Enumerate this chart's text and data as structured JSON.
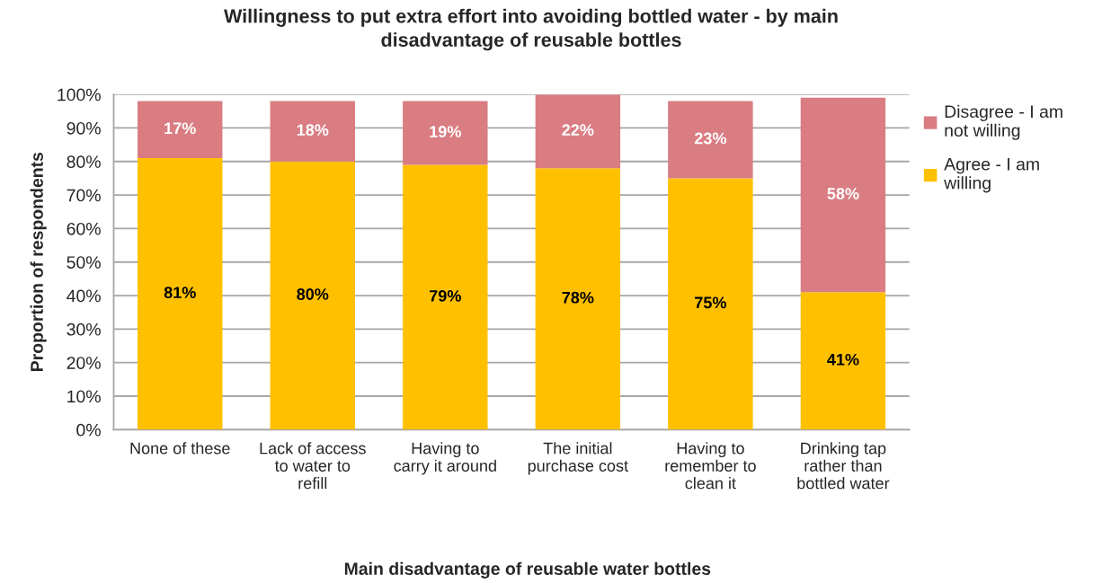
{
  "chart_data": {
    "type": "bar",
    "title": "Willingness to put extra effort into avoiding bottled water - by main\ndisadvantage of reusable bottles",
    "xlabel": "Main disadvantage of reusable water bottles",
    "ylabel": "Proportion of respondents",
    "categories": [
      "None of these",
      "Lack of access\nto water to\nrefill",
      "Having to\ncarry it around",
      "The initial\npurchase cost",
      "Having to\nremember to\nclean it",
      "Drinking tap\nrather than\nbottled water"
    ],
    "series": [
      {
        "name": "Agree - I am\nwilling",
        "color": "#ffc000",
        "values": [
          81,
          80,
          79,
          78,
          75,
          41
        ],
        "value_labels": [
          "81%",
          "80%",
          "79%",
          "78%",
          "75%",
          "41%"
        ]
      },
      {
        "name": "Disagree - I am\nnot willing",
        "color": "#d97d83",
        "values": [
          17,
          18,
          19,
          22,
          23,
          58
        ],
        "value_labels": [
          "17%",
          "18%",
          "19%",
          "22%",
          "23%",
          "58%"
        ]
      }
    ],
    "stacked": true,
    "ylim": [
      0,
      100
    ],
    "yticks": [
      {
        "value": 0,
        "label": "0%"
      },
      {
        "value": 10,
        "label": "10%"
      },
      {
        "value": 20,
        "label": "20%"
      },
      {
        "value": 30,
        "label": "30%"
      },
      {
        "value": 40,
        "label": "40%"
      },
      {
        "value": 50,
        "label": "50%"
      },
      {
        "value": 60,
        "label": "60%"
      },
      {
        "value": 70,
        "label": "70%"
      },
      {
        "value": 80,
        "label": "80%"
      },
      {
        "value": 90,
        "label": "90%"
      },
      {
        "value": 100,
        "label": "100%"
      }
    ],
    "grid": "y",
    "legend": "right"
  }
}
